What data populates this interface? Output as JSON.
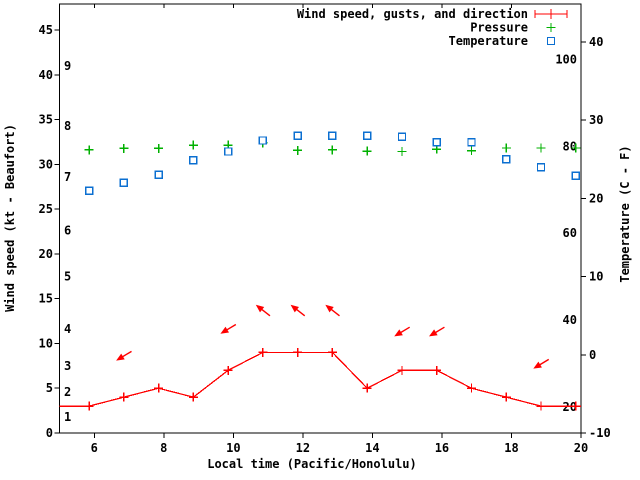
{
  "page": {
    "background": "#ffffff"
  },
  "chart_data": {
    "type": "line",
    "title": "",
    "xlabel": "Local time (Pacific/Honolulu)",
    "ylabel_left": "Wind speed (kt - Beaufort)",
    "ylabel_right": "Temperature (C - F)",
    "grid": false,
    "x_axis": {
      "range": [
        5,
        20
      ],
      "tick_values": [
        6,
        8,
        10,
        12,
        14,
        16,
        18,
        20
      ],
      "tick_labels": [
        "6",
        "8",
        "10",
        "12",
        "14",
        "16",
        "18",
        "20"
      ]
    },
    "y_axis_left": {
      "unit": "kt",
      "range": [
        0,
        48
      ],
      "tick_values": [
        0,
        5,
        10,
        15,
        20,
        25,
        30,
        35,
        40,
        45
      ],
      "tick_labels": [
        "0",
        "5",
        "10",
        "15",
        "20",
        "25",
        "30",
        "35",
        "40",
        "45"
      ],
      "beaufort_labels": [
        {
          "label": "1",
          "kt": 1.8
        },
        {
          "label": "2",
          "kt": 4.6
        },
        {
          "label": "3",
          "kt": 7.5
        },
        {
          "label": "4",
          "kt": 11.6
        },
        {
          "label": "5",
          "kt": 17.5
        },
        {
          "label": "6",
          "kt": 22.6
        },
        {
          "label": "7",
          "kt": 28.6
        },
        {
          "label": "8",
          "kt": 34.3
        },
        {
          "label": "9",
          "kt": 41.0
        }
      ]
    },
    "y_axis_right": {
      "unit": "C",
      "range": [
        -10,
        45
      ],
      "tick_values": [
        -10,
        0,
        10,
        20,
        30,
        40
      ],
      "tick_labels": [
        "-10",
        "0",
        "10",
        "20",
        "30",
        "40"
      ],
      "fahrenheit_labels": [
        {
          "label": "20",
          "f": 20
        },
        {
          "label": "40",
          "f": 40
        },
        {
          "label": "60",
          "f": 60
        },
        {
          "label": "80",
          "f": 80
        },
        {
          "label": "100",
          "f": 100
        }
      ]
    },
    "x_hours": [
      5.85,
      6.85,
      7.85,
      8.85,
      9.85,
      10.85,
      11.85,
      12.85,
      13.85,
      14.85,
      15.85,
      16.85,
      17.85,
      18.85,
      19.85
    ],
    "series": [
      {
        "name": "Wind speed, gusts, and direction",
        "color": "#ff0000",
        "marker": "plus",
        "style": "line-with-points",
        "y_axis": "left_kt",
        "extends_to_borders": true,
        "values": [
          3,
          4,
          5,
          4,
          7,
          9,
          9,
          9,
          5,
          7,
          7,
          5,
          4,
          3,
          3
        ]
      },
      {
        "name": "Pressure",
        "color": "#00b000",
        "marker": "plus",
        "style": "points",
        "y_axis": "unlabeled-plotted-against-right-axis-position",
        "values_on_c_axis": [
          26.2,
          26.4,
          26.4,
          26.8,
          26.8,
          27.1,
          26.15,
          26.2,
          26.05,
          26.0,
          26.3,
          26.1,
          26.45,
          26.45,
          26.45
        ]
      },
      {
        "name": "Temperature",
        "color": "#0b6fd1",
        "marker": "open-square",
        "style": "points",
        "y_axis": "right_c",
        "values_c": [
          21.0,
          22.0,
          23.0,
          24.9,
          26.0,
          27.4,
          28.0,
          28.0,
          28.0,
          27.9,
          27.2,
          27.2,
          25.0,
          24.0,
          22.9
        ]
      }
    ],
    "wind_direction_arrows": {
      "color": "#ff0000",
      "items": [
        {
          "hour": 6.85,
          "kt": 8.6,
          "pointing": "down-left"
        },
        {
          "hour": 9.85,
          "kt": 11.6,
          "pointing": "down-left"
        },
        {
          "hour": 10.85,
          "kt": 13.7,
          "pointing": "up-left"
        },
        {
          "hour": 11.85,
          "kt": 13.7,
          "pointing": "up-left"
        },
        {
          "hour": 12.85,
          "kt": 13.7,
          "pointing": "up-left"
        },
        {
          "hour": 14.85,
          "kt": 11.3,
          "pointing": "down-left"
        },
        {
          "hour": 15.85,
          "kt": 11.3,
          "pointing": "down-left"
        },
        {
          "hour": 18.85,
          "kt": 7.7,
          "pointing": "down-left"
        }
      ]
    },
    "legend": {
      "position": "top-right-inside",
      "entries": [
        {
          "label": "Wind speed, gusts, and direction",
          "sample": "errorbar-line-with-plus",
          "color": "#ff0000"
        },
        {
          "label": "Pressure",
          "sample": "plus",
          "color": "#00b000"
        },
        {
          "label": "Temperature",
          "sample": "open-square",
          "color": "#0b6fd1"
        }
      ]
    },
    "colors": {
      "axis": "#000000",
      "text": "#000000",
      "wind": "#ff0000",
      "pressure": "#00b000",
      "temperature": "#0b6fd1",
      "background": "#ffffff"
    }
  }
}
